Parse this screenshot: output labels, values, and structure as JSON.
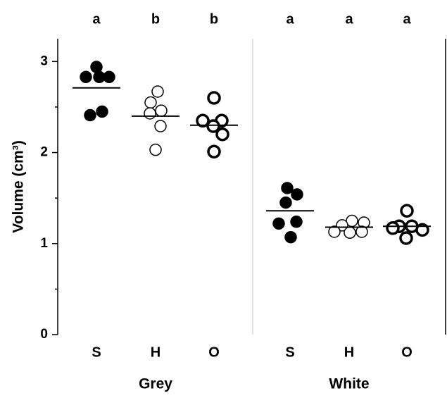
{
  "chart_data": {
    "type": "dot",
    "ylabel": "Volume (cm³)",
    "ylim": [
      0,
      3.25
    ],
    "yticks": [
      0,
      1,
      2,
      3
    ],
    "yminorticks": [
      0.5,
      1.5,
      2.5
    ],
    "groups": [
      {
        "name": "Grey",
        "categories": [
          "S",
          "H",
          "O"
        ],
        "letters": [
          "a",
          "b",
          "b"
        ],
        "series": [
          {
            "marker_fill": "#000000",
            "marker_edge_width": 1.5,
            "values": [
              2.94,
              2.83,
              2.83,
              2.83,
              2.45,
              2.41
            ],
            "mean": 2.71
          },
          {
            "marker_fill": "#ffffff",
            "marker_edge_width": 1.5,
            "values": [
              2.67,
              2.55,
              2.46,
              2.43,
              2.29,
              2.03
            ],
            "mean": 2.4
          },
          {
            "marker_fill": "#ffffff",
            "marker_edge_width": 3.5,
            "values": [
              2.6,
              2.35,
              2.35,
              2.29,
              2.2,
              2.01
            ],
            "mean": 2.3
          }
        ]
      },
      {
        "name": "White",
        "categories": [
          "S",
          "H",
          "O"
        ],
        "letters": [
          "a",
          "a",
          "a"
        ],
        "series": [
          {
            "marker_fill": "#000000",
            "marker_edge_width": 1.5,
            "values": [
              1.61,
              1.54,
              1.45,
              1.22,
              1.24,
              1.07
            ],
            "mean": 1.36
          },
          {
            "marker_fill": "#ffffff",
            "marker_edge_width": 1.5,
            "values": [
              1.25,
              1.23,
              1.2,
              1.13,
              1.12,
              1.13
            ],
            "mean": 1.18
          },
          {
            "marker_fill": "#ffffff",
            "marker_edge_width": 3.5,
            "values": [
              1.36,
              1.19,
              1.19,
              1.15,
              1.17,
              1.06
            ],
            "mean": 1.19
          }
        ]
      }
    ]
  }
}
